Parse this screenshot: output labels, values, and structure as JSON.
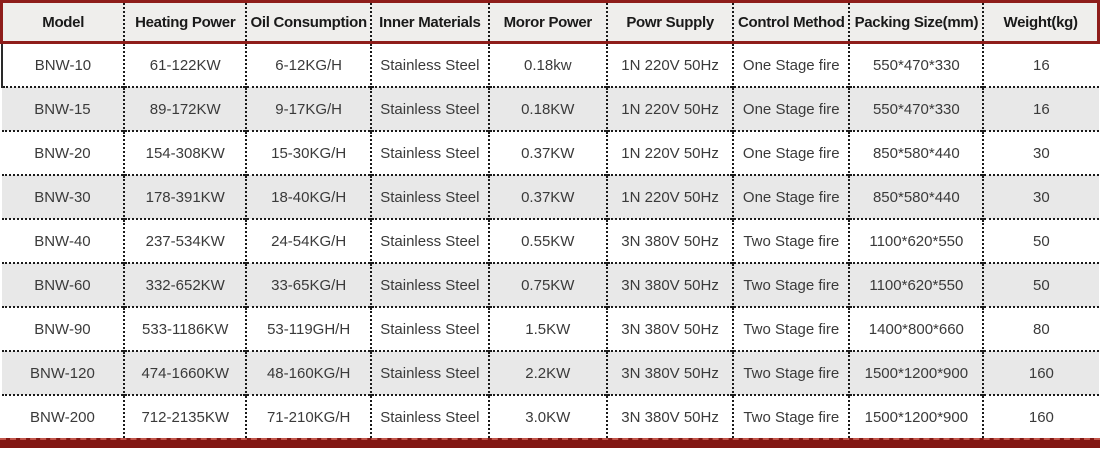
{
  "table": {
    "columns": [
      {
        "label": "Model"
      },
      {
        "label": "Heating Power"
      },
      {
        "label": "Oil Consumption"
      },
      {
        "label": "Inner Materials"
      },
      {
        "label": "Moror Power"
      },
      {
        "label": "Powr Supply"
      },
      {
        "label": "Control Method"
      },
      {
        "label": "Packing Size(mm)"
      },
      {
        "label": "Weight(kg)"
      }
    ],
    "rows": [
      {
        "cells": [
          "BNW-10",
          "61-122KW",
          "6-12KG/H",
          "Stainless Steel",
          "0.18kw",
          "1N 220V 50Hz",
          "One Stage fire",
          "550*470*330",
          "16"
        ]
      },
      {
        "cells": [
          "BNW-15",
          "89-172KW",
          "9-17KG/H",
          "Stainless Steel",
          "0.18KW",
          "1N 220V 50Hz",
          "One Stage fire",
          "550*470*330",
          "16"
        ]
      },
      {
        "cells": [
          "BNW-20",
          "154-308KW",
          "15-30KG/H",
          "Stainless Steel",
          "0.37KW",
          "1N 220V 50Hz",
          "One Stage fire",
          "850*580*440",
          "30"
        ]
      },
      {
        "cells": [
          "BNW-30",
          "178-391KW",
          "18-40KG/H",
          "Stainless Steel",
          "0.37KW",
          "1N 220V 50Hz",
          "One Stage fire",
          "850*580*440",
          "30"
        ]
      },
      {
        "cells": [
          "BNW-40",
          "237-534KW",
          "24-54KG/H",
          "Stainless Steel",
          "0.55KW",
          "3N 380V 50Hz",
          "Two Stage fire",
          "1100*620*550",
          "50"
        ]
      },
      {
        "cells": [
          "BNW-60",
          "332-652KW",
          "33-65KG/H",
          "Stainless Steel",
          "0.75KW",
          "3N 380V 50Hz",
          "Two Stage fire",
          "1100*620*550",
          "50"
        ]
      },
      {
        "cells": [
          "BNW-90",
          "533-1186KW",
          "53-119GH/H",
          "Stainless Steel",
          "1.5KW",
          "3N 380V 50Hz",
          "Two Stage fire",
          "1400*800*660",
          "80"
        ]
      },
      {
        "cells": [
          "BNW-120",
          "474-1660KW",
          "48-160KG/H",
          "Stainless Steel",
          "2.2KW",
          "3N 380V 50Hz",
          "Two Stage fire",
          "1500*1200*900",
          "160"
        ]
      },
      {
        "cells": [
          "BNW-200",
          "712-2135KW",
          "71-210KG/H",
          "Stainless Steel",
          "3.0KW",
          "3N 380V 50Hz",
          "Two Stage fire",
          "1500*1200*900",
          "160"
        ]
      }
    ]
  },
  "colors": {
    "accent_red": "#8e1d1a",
    "bottom_bar_red": "#821713",
    "header_bg": "#efeeec",
    "row_alt_bg": "#e8e8e8",
    "row_bg": "#ffffff",
    "text": "#3a3a3a",
    "separator": "#1a1a1a"
  }
}
